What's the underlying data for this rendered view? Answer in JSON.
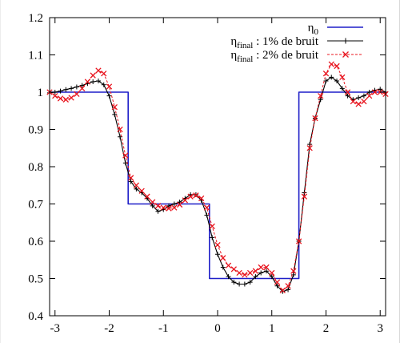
{
  "chart_data": {
    "type": "line",
    "title": "",
    "xlabel": "",
    "ylabel": "",
    "xlim": [
      -3.1,
      3.1
    ],
    "ylim": [
      0.4,
      1.2
    ],
    "x_ticks": [
      -3,
      -2,
      -1,
      0,
      1,
      2,
      3
    ],
    "x_tick_labels": [
      "-3",
      "-2",
      "-1",
      "0",
      "1",
      "2",
      "3"
    ],
    "y_ticks": [
      0.4,
      0.5,
      0.6,
      0.7,
      0.8,
      0.9,
      1.0,
      1.1,
      1.2
    ],
    "y_tick_labels": [
      "0.4",
      "0.5",
      "0.6",
      "0.7",
      "0.8",
      "0.9",
      "1",
      "1.1",
      "1.2"
    ],
    "grid": false,
    "legend_position": "top-right",
    "legend": [
      {
        "main": "η",
        "sub": "0",
        "rest": ""
      },
      {
        "main": "η",
        "sub": "final",
        "rest": " : 1% de bruit"
      },
      {
        "main": "η",
        "sub": "final",
        "rest": " : 2% de bruit"
      }
    ],
    "colors": {
      "eta0": "#1f1fc8",
      "noise1": "#000000",
      "noise2": "#e8141e"
    },
    "series": [
      {
        "name": "η0",
        "marker": "none",
        "x": [
          -3.1,
          -1.65,
          -1.65,
          -0.15,
          -0.15,
          1.5,
          1.5,
          3.1
        ],
        "y": [
          1.0,
          1.0,
          0.7,
          0.7,
          0.5,
          0.5,
          1.0,
          1.0
        ]
      },
      {
        "name": "ηfinal : 1% de bruit",
        "marker": "plus",
        "x": [
          -3.1,
          -3.0,
          -2.9,
          -2.8,
          -2.7,
          -2.6,
          -2.5,
          -2.4,
          -2.3,
          -2.2,
          -2.1,
          -2.0,
          -1.9,
          -1.8,
          -1.7,
          -1.6,
          -1.5,
          -1.4,
          -1.3,
          -1.2,
          -1.1,
          -1.0,
          -0.9,
          -0.8,
          -0.7,
          -0.6,
          -0.5,
          -0.4,
          -0.3,
          -0.2,
          -0.1,
          0.0,
          0.1,
          0.2,
          0.3,
          0.4,
          0.5,
          0.6,
          0.7,
          0.8,
          0.9,
          1.0,
          1.1,
          1.2,
          1.3,
          1.4,
          1.5,
          1.6,
          1.7,
          1.8,
          1.9,
          2.0,
          2.1,
          2.2,
          2.3,
          2.4,
          2.5,
          2.6,
          2.7,
          2.8,
          2.9,
          3.0,
          3.1
        ],
        "y": [
          0.998,
          1.0,
          1.003,
          1.007,
          1.01,
          1.014,
          1.018,
          1.023,
          1.028,
          1.03,
          1.02,
          0.99,
          0.94,
          0.88,
          0.81,
          0.76,
          0.74,
          0.73,
          0.715,
          0.695,
          0.68,
          0.685,
          0.695,
          0.7,
          0.705,
          0.715,
          0.725,
          0.725,
          0.71,
          0.67,
          0.61,
          0.565,
          0.53,
          0.505,
          0.49,
          0.485,
          0.485,
          0.49,
          0.505,
          0.515,
          0.52,
          0.505,
          0.48,
          0.465,
          0.47,
          0.51,
          0.6,
          0.73,
          0.86,
          0.93,
          0.98,
          1.03,
          1.04,
          1.03,
          1.01,
          0.99,
          0.98,
          0.985,
          0.99,
          1.0,
          1.005,
          1.008,
          1.0
        ]
      },
      {
        "name": "ηfinal : 2% de bruit",
        "marker": "cross",
        "x": [
          -3.1,
          -3.0,
          -2.9,
          -2.8,
          -2.7,
          -2.6,
          -2.5,
          -2.4,
          -2.3,
          -2.2,
          -2.1,
          -2.0,
          -1.9,
          -1.8,
          -1.7,
          -1.6,
          -1.5,
          -1.4,
          -1.3,
          -1.2,
          -1.1,
          -1.0,
          -0.9,
          -0.8,
          -0.7,
          -0.6,
          -0.5,
          -0.4,
          -0.3,
          -0.2,
          -0.1,
          0.0,
          0.1,
          0.2,
          0.3,
          0.4,
          0.5,
          0.6,
          0.7,
          0.8,
          0.9,
          1.0,
          1.1,
          1.2,
          1.3,
          1.4,
          1.5,
          1.6,
          1.7,
          1.8,
          1.9,
          2.0,
          2.1,
          2.2,
          2.3,
          2.4,
          2.5,
          2.6,
          2.7,
          2.8,
          2.9,
          3.0,
          3.1
        ],
        "y": [
          1.0,
          0.99,
          0.983,
          0.98,
          0.985,
          0.995,
          1.01,
          1.028,
          1.045,
          1.058,
          1.05,
          1.015,
          0.96,
          0.9,
          0.83,
          0.77,
          0.75,
          0.735,
          0.72,
          0.705,
          0.695,
          0.69,
          0.688,
          0.69,
          0.698,
          0.71,
          0.72,
          0.723,
          0.715,
          0.69,
          0.64,
          0.59,
          0.555,
          0.535,
          0.525,
          0.515,
          0.51,
          0.515,
          0.52,
          0.53,
          0.53,
          0.515,
          0.49,
          0.468,
          0.48,
          0.52,
          0.6,
          0.72,
          0.85,
          0.93,
          0.99,
          1.05,
          1.075,
          1.07,
          1.04,
          1.0,
          0.975,
          0.968,
          0.975,
          0.99,
          1.0,
          1.0,
          0.995
        ]
      }
    ]
  }
}
